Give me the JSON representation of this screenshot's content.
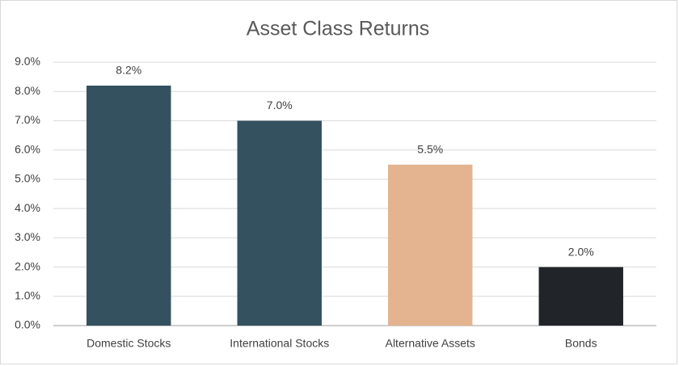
{
  "chart_data": {
    "type": "bar",
    "title": "Asset Class Returns",
    "categories": [
      "Domestic Stocks",
      "International Stocks",
      "Alternative Assets",
      "Bonds"
    ],
    "values": [
      8.2,
      7.0,
      5.5,
      2.0
    ],
    "value_labels": [
      "8.2%",
      "7.0%",
      "5.5%",
      "2.0%"
    ],
    "colors": [
      "#34515f",
      "#34515f",
      "#e3b48f",
      "#212529"
    ],
    "ylim": [
      0,
      9
    ],
    "yticks": [
      {
        "value": 0,
        "label": "0.0%"
      },
      {
        "value": 1,
        "label": "1.0%"
      },
      {
        "value": 2,
        "label": "2.0%"
      },
      {
        "value": 3,
        "label": "3.0%"
      },
      {
        "value": 4,
        "label": "4.0%"
      },
      {
        "value": 5,
        "label": "5.0%"
      },
      {
        "value": 6,
        "label": "6.0%"
      },
      {
        "value": 7,
        "label": "7.0%"
      },
      {
        "value": 8,
        "label": "8.0%"
      },
      {
        "value": 9,
        "label": "9.0%"
      }
    ],
    "grid": true
  }
}
